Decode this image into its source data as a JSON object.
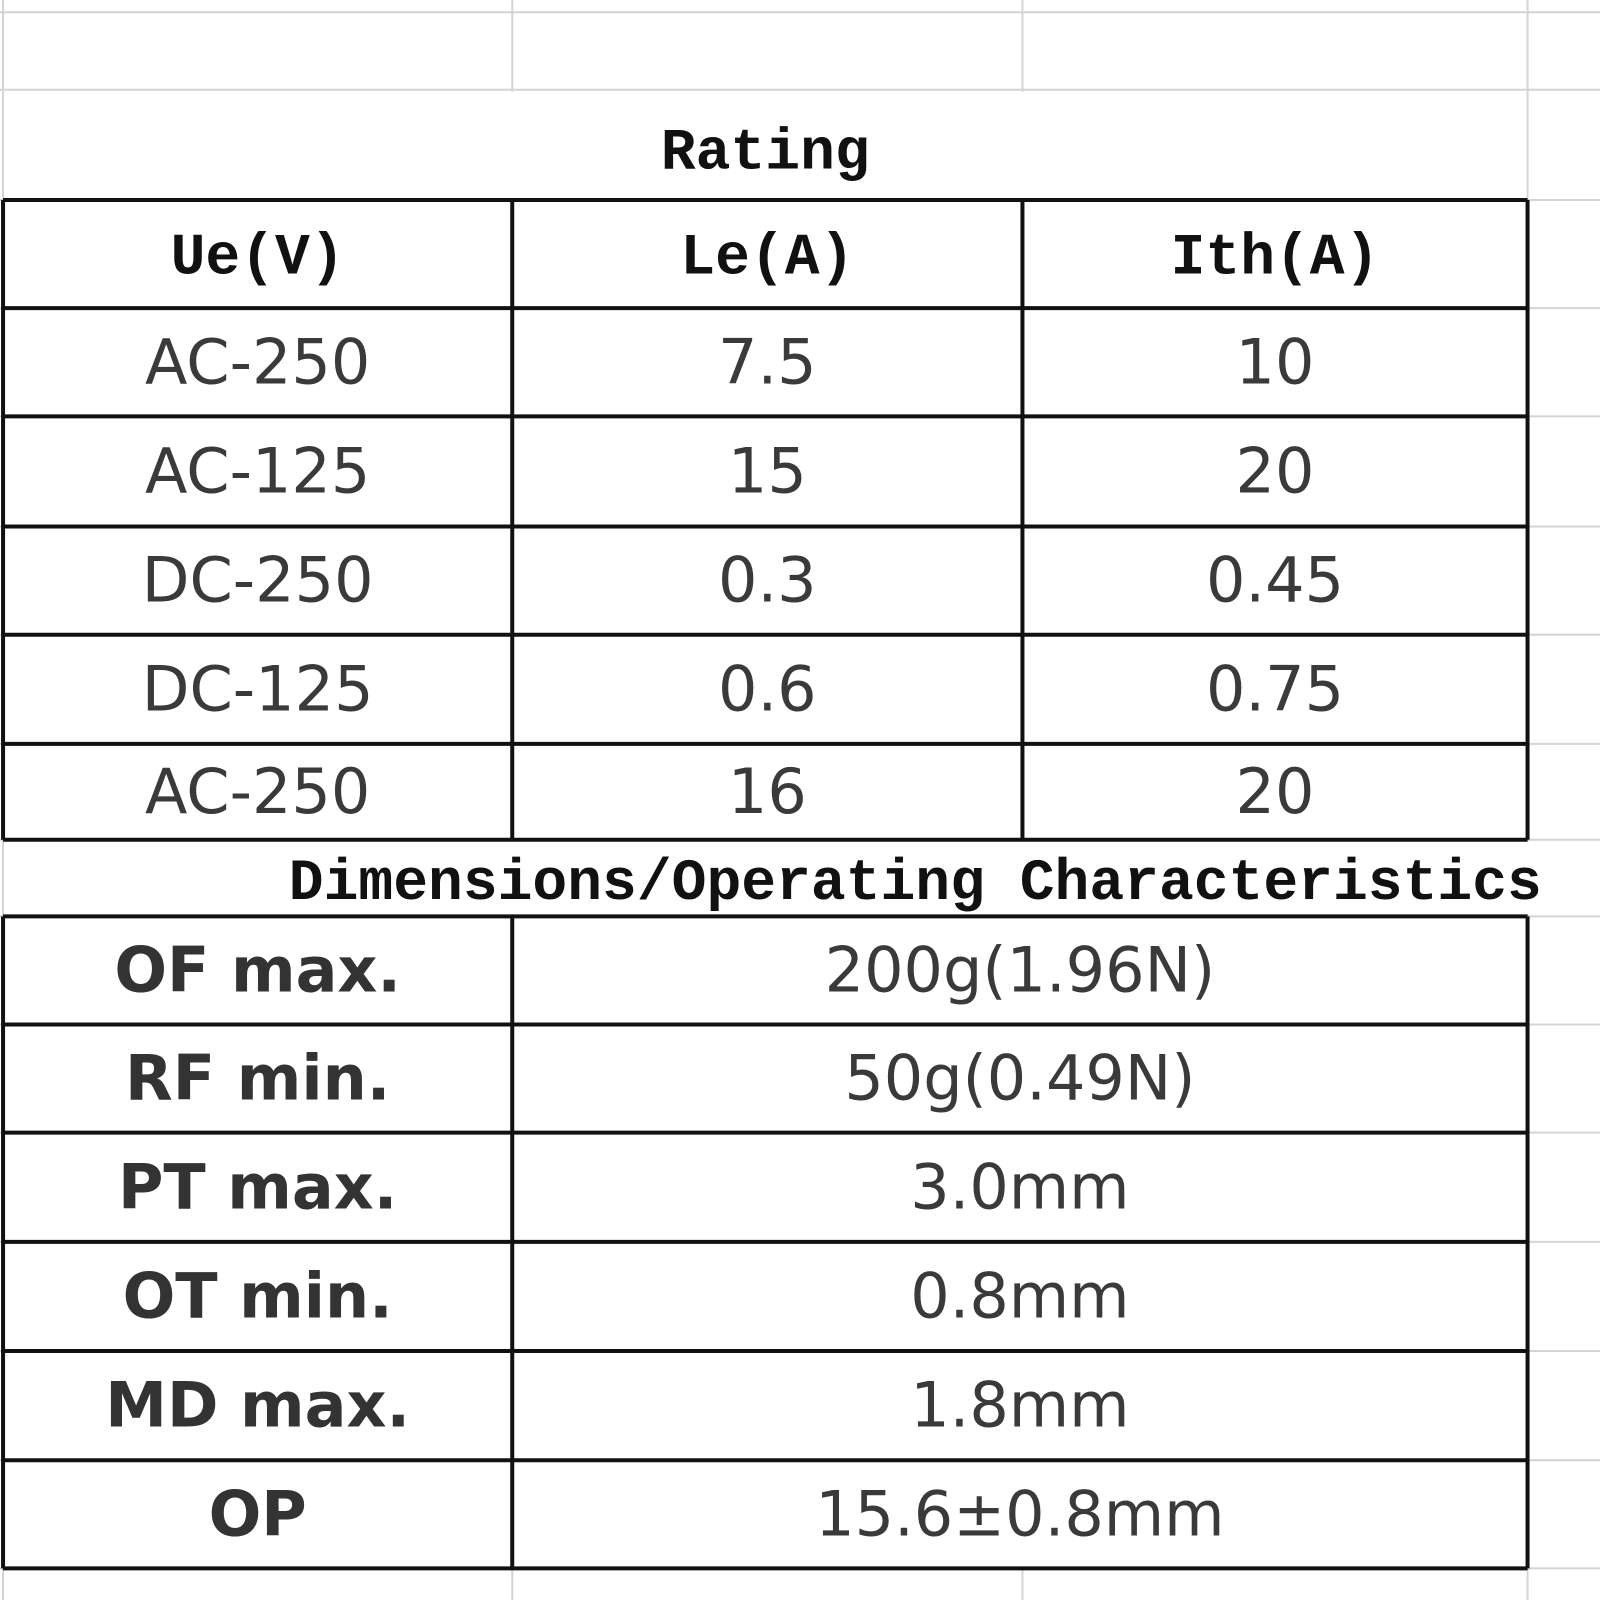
{
  "rating": {
    "title": "Rating",
    "headers": [
      "Ue(V)",
      "Le(A)",
      "Ith(A)"
    ],
    "rows": [
      [
        "AC-250",
        "7.5",
        "10"
      ],
      [
        "AC-125",
        "15",
        "20"
      ],
      [
        "DC-250",
        "0.3",
        "0.45"
      ],
      [
        "DC-125",
        "0.6",
        "0.75"
      ],
      [
        "AC-250",
        "16",
        "20"
      ]
    ]
  },
  "dimensions": {
    "title": "Dimensions/Operating Characteristics",
    "rows": [
      [
        "OF max.",
        "200g(1.96N)"
      ],
      [
        "RF min.",
        "50g(0.49N)"
      ],
      [
        "PT max.",
        "3.0mm"
      ],
      [
        "OT min.",
        "0.8mm"
      ],
      [
        "MD max.",
        "1.8mm"
      ],
      [
        "OP",
        "15.6±0.8mm"
      ]
    ]
  }
}
